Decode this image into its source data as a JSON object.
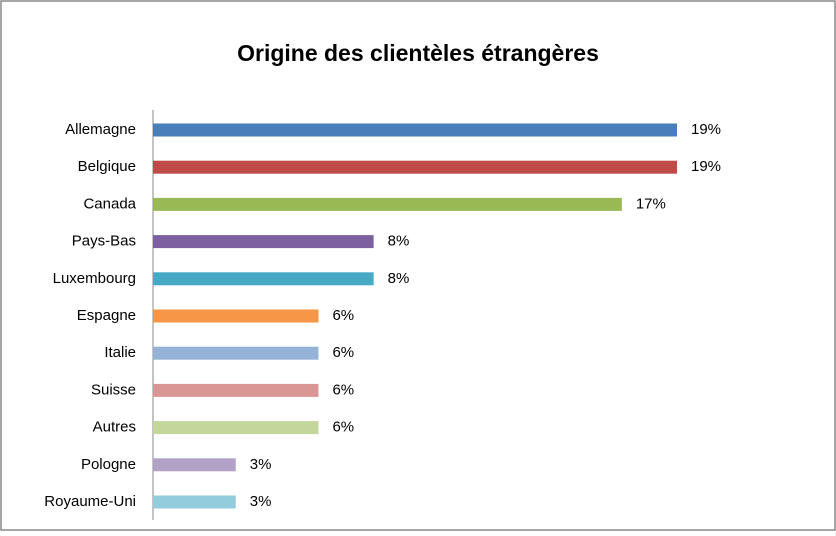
{
  "chart_data": {
    "type": "bar",
    "orientation": "horizontal",
    "title": "Origine des clientèles étrangères",
    "categories": [
      "Allemagne",
      "Belgique",
      "Canada",
      "Pays-Bas",
      "Luxembourg",
      "Espagne",
      "Italie",
      "Suisse",
      "Autres",
      "Pologne",
      "Royaume-Uni"
    ],
    "values": [
      19,
      19,
      17,
      8,
      8,
      6,
      6,
      6,
      6,
      3,
      3
    ],
    "value_labels": [
      "19%",
      "19%",
      "17%",
      "8%",
      "8%",
      "6%",
      "6%",
      "6%",
      "6%",
      "3%",
      "3%"
    ],
    "colors": [
      "#4a7ebb",
      "#be4b48",
      "#98b954",
      "#7d60a0",
      "#46aac5",
      "#f79646",
      "#95b3d7",
      "#d99694",
      "#c3d69b",
      "#b3a2c7",
      "#93cddd"
    ]
  }
}
